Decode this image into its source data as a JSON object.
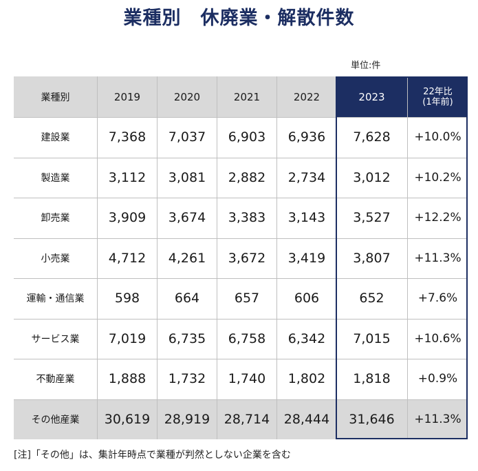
{
  "title": "業種別　休廃業・解散件数",
  "unit": "単位:件",
  "columns": [
    "業種別",
    "2019",
    "2020",
    "2021",
    "2022",
    "2023",
    "22年比",
    "(1年前)"
  ],
  "rows": [
    {
      "industry": "建設業",
      "v2019": "7,368",
      "v2020": "7,037",
      "v2021": "6,903",
      "v2022": "6,936",
      "v2023": "7,628",
      "change": "+10.0%"
    },
    {
      "industry": "製造業",
      "v2019": "3,112",
      "v2020": "3,081",
      "v2021": "2,882",
      "v2022": "2,734",
      "v2023": "3,012",
      "change": "+10.2%"
    },
    {
      "industry": "卸売業",
      "v2019": "3,909",
      "v2020": "3,674",
      "v2021": "3,383",
      "v2022": "3,143",
      "v2023": "3,527",
      "change": "+12.2%"
    },
    {
      "industry": "小売業",
      "v2019": "4,712",
      "v2020": "4,261",
      "v2021": "3,672",
      "v2022": "3,419",
      "v2023": "3,807",
      "change": "+11.3%"
    },
    {
      "industry": "運輸・通信業",
      "v2019": "598",
      "v2020": "664",
      "v2021": "657",
      "v2022": "606",
      "v2023": "652",
      "change": "+7.6%"
    },
    {
      "industry": "サービス業",
      "v2019": "7,019",
      "v2020": "6,735",
      "v2021": "6,758",
      "v2022": "6,342",
      "v2023": "7,015",
      "change": "+10.6%"
    },
    {
      "industry": "不動産業",
      "v2019": "1,888",
      "v2020": "1,732",
      "v2021": "1,740",
      "v2022": "1,802",
      "v2023": "1,818",
      "change": "+0.9%"
    },
    {
      "industry": "その他産業",
      "v2019": "30,619",
      "v2020": "28,919",
      "v2021": "28,714",
      "v2022": "28,444",
      "v2023": "31,646",
      "change": "+11.3%"
    }
  ],
  "note": "[注]「その他」は、集計年時点で業種が判然としない企業を含む",
  "colors": {
    "accent": "#1c2e62",
    "header_bg": "#d9d9d9",
    "grid": "#bfbfbf"
  }
}
